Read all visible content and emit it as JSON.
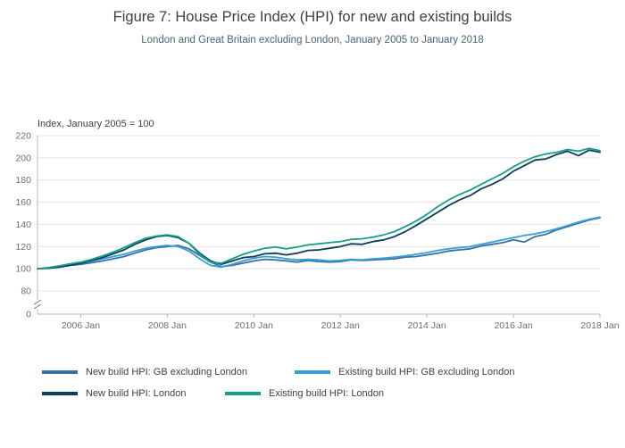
{
  "title": "Figure 7: House Price Index (HPI) for new and existing builds",
  "subtitle": "London and Great Britain excluding London, January 2005 to January 2018",
  "chart_data": {
    "type": "line",
    "title": "Figure 7: House Price Index (HPI) for new and existing builds",
    "subtitle": "London and Great Britain excluding London, January 2005 to January 2018",
    "ylabel": "Index, January 2005 = 100",
    "xlabel": "",
    "x_start_year": 2005,
    "x_end_year": 2018,
    "points_per_year": 4,
    "x_tick_years": [
      2006,
      2008,
      2010,
      2012,
      2014,
      2016,
      2018
    ],
    "x_tick_labels": [
      "2006 Jan",
      "2008 Jan",
      "2010 Jan",
      "2012 Jan",
      "2014 Jan",
      "2016 Jan",
      "2018 Jan"
    ],
    "y_ticks": [
      0,
      80,
      100,
      120,
      140,
      160,
      180,
      200,
      220
    ],
    "y_axis_break": true,
    "grid": true,
    "legend_position": "bottom",
    "series": [
      {
        "name": "New build HPI: GB excluding London",
        "color": "#3e6e9e",
        "values": [
          100,
          100.5,
          101.5,
          103,
          104,
          105.5,
          107,
          109,
          111,
          114,
          117,
          119,
          120,
          121,
          118,
          112,
          106,
          102,
          103,
          105,
          107,
          108.5,
          108,
          107,
          106,
          107.5,
          106.5,
          106,
          106.5,
          108,
          107.5,
          108,
          108.5,
          109,
          110.5,
          111,
          112.5,
          114,
          116,
          117,
          118,
          120.5,
          122,
          123.5,
          126,
          124,
          129,
          131,
          135,
          138,
          141,
          144,
          146
        ]
      },
      {
        "name": "Existing build HPI: GB excluding London",
        "color": "#33a0da",
        "values": [
          100,
          101,
          102.5,
          104,
          105.5,
          107,
          109,
          111,
          113,
          116,
          118.5,
          120,
          121,
          120,
          116,
          109,
          103,
          101.5,
          104,
          107,
          109.5,
          111,
          110.5,
          109,
          108,
          108.5,
          108,
          107,
          107.5,
          108.5,
          108,
          109,
          109.5,
          110.5,
          111.5,
          113,
          114.5,
          116.5,
          118,
          119,
          120,
          122,
          124,
          126,
          128,
          130,
          131.5,
          133.5,
          136,
          139,
          142,
          144.5,
          146.5
        ]
      },
      {
        "name": "New build HPI: London",
        "color": "#103d5d",
        "values": [
          100,
          100.5,
          101.5,
          103,
          105,
          107.5,
          110,
          113.5,
          117,
          122,
          126,
          129,
          130,
          128,
          123,
          114,
          107,
          104,
          107,
          110,
          111,
          113.5,
          114,
          112.5,
          114,
          116.5,
          117,
          118.5,
          120,
          122.5,
          122,
          124.5,
          126,
          129,
          133.5,
          139,
          145,
          151,
          157,
          162,
          166,
          172,
          176,
          181,
          188,
          193,
          198,
          199,
          203,
          206,
          202,
          207,
          205
        ]
      },
      {
        "name": "Existing build HPI: London",
        "color": "#13a187",
        "values": [
          100,
          101,
          102.5,
          104.5,
          106,
          108.5,
          111.5,
          115,
          119,
          123.5,
          127.5,
          129.5,
          130.5,
          129,
          123,
          113,
          106,
          105,
          109,
          113,
          116,
          118.5,
          119.5,
          118,
          119.5,
          121.5,
          122.5,
          123.5,
          124.5,
          126.5,
          127,
          128.5,
          130.5,
          133.5,
          138,
          143,
          149,
          156,
          162,
          167,
          171,
          176,
          181,
          186,
          192,
          197,
          201,
          203.5,
          205,
          207.5,
          206,
          208.5,
          206.5
        ]
      }
    ]
  },
  "legend": {
    "items": [
      {
        "label": "New build HPI: GB excluding London",
        "color": "#3e6e9e"
      },
      {
        "label": "Existing build HPI: GB excluding London",
        "color": "#33a0da"
      },
      {
        "label": "New build HPI: London",
        "color": "#103d5d"
      },
      {
        "label": "Existing build HPI: London",
        "color": "#13a187"
      }
    ]
  }
}
